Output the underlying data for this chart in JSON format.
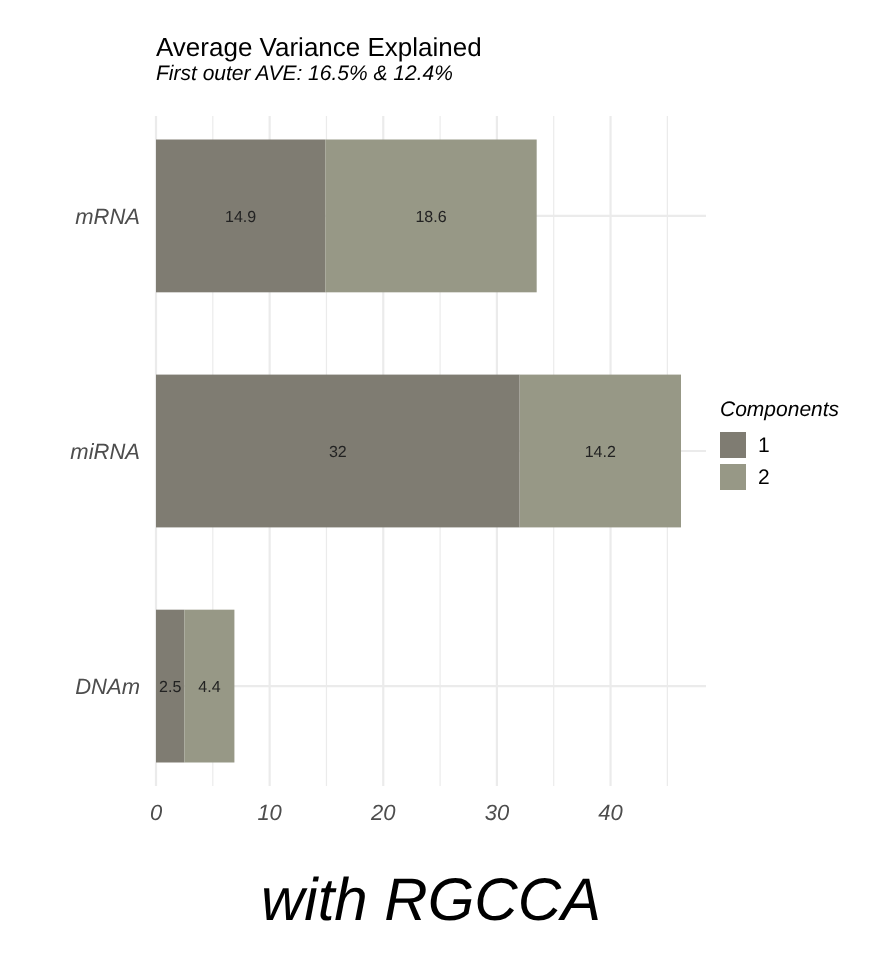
{
  "chart_data": {
    "type": "bar",
    "orientation": "horizontal",
    "stacked": true,
    "title": "Average Variance Explained",
    "subtitle": "First outer AVE: 16.5% & 12.4%",
    "categories": [
      "mRNA",
      "miRNA",
      "DNAm"
    ],
    "series": [
      {
        "name": "1",
        "color": "#7f7c72",
        "values": [
          14.9,
          32,
          2.5
        ]
      },
      {
        "name": "2",
        "color": "#979886",
        "values": [
          18.6,
          14.2,
          4.4
        ]
      }
    ],
    "xlim": [
      0,
      48.4
    ],
    "xticks": [
      0,
      {
        "value": 5,
        "label": null
      },
      10,
      {
        "value": 15,
        "label": null
      },
      20,
      {
        "value": 25,
        "label": null
      },
      30,
      {
        "value": 35,
        "label": null
      },
      40,
      {
        "value": 45,
        "label": null
      }
    ],
    "grid": true,
    "legend": "right",
    "legend_title": "Components",
    "data_labels": true,
    "annotations": [
      "with RGCCA"
    ]
  }
}
